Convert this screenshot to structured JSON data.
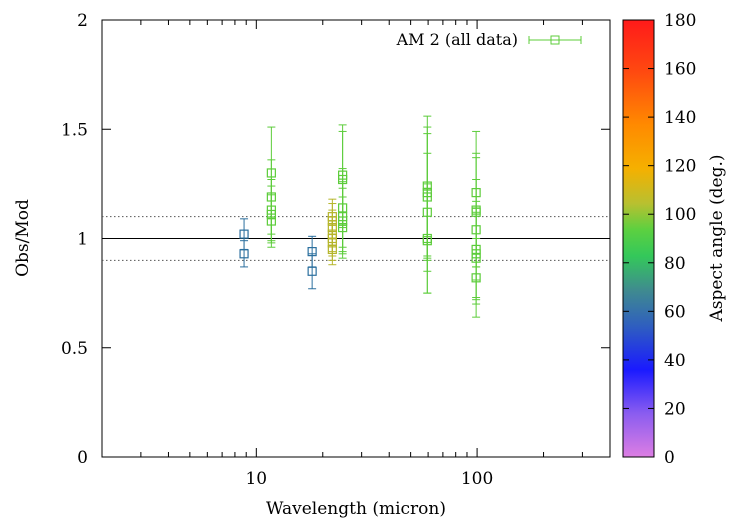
{
  "chart_data": {
    "type": "scatter",
    "xlabel": "Wavelength (micron)",
    "ylabel": "Obs/Mod",
    "xscale": "log",
    "xlim": [
      2,
      400
    ],
    "ylim": [
      0,
      2
    ],
    "x_ticks": [
      10,
      100
    ],
    "y_ticks": [
      0,
      0.5,
      1,
      1.5,
      2
    ],
    "x_tick_labels": [
      "10",
      "100"
    ],
    "y_tick_labels": [
      "0",
      "0.5",
      "1",
      "1.5",
      "2"
    ],
    "legend": {
      "label": "AM 2 (all data)",
      "position": "top-right",
      "marker": "open-square-with-errorbars"
    },
    "reference_lines": [
      {
        "y": 1.0,
        "style": "solid"
      },
      {
        "y": 1.1,
        "style": "dotted"
      },
      {
        "y": 0.9,
        "style": "dotted"
      }
    ],
    "colorbar": {
      "label": "Aspect angle (deg.)",
      "min": 0,
      "max": 180,
      "ticks": [
        0,
        20,
        40,
        60,
        80,
        100,
        120,
        140,
        160,
        180
      ],
      "tick_labels": [
        "0",
        "20",
        "40",
        "60",
        "80",
        "100",
        "120",
        "140",
        "160",
        "180"
      ]
    },
    "points": [
      {
        "x": 8.8,
        "y": 1.02,
        "err": 0.07,
        "c": 55
      },
      {
        "x": 8.8,
        "y": 0.93,
        "err": 0.06,
        "c": 55
      },
      {
        "x": 11.7,
        "y": 1.3,
        "err": 0.21,
        "c": 82
      },
      {
        "x": 11.7,
        "y": 1.19,
        "err": 0.17,
        "c": 82
      },
      {
        "x": 11.7,
        "y": 1.13,
        "err": 0.14,
        "c": 82
      },
      {
        "x": 11.7,
        "y": 1.11,
        "err": 0.13,
        "c": 82
      },
      {
        "x": 11.7,
        "y": 1.08,
        "err": 0.12,
        "c": 82
      },
      {
        "x": 17.9,
        "y": 0.94,
        "err": 0.07,
        "c": 55
      },
      {
        "x": 17.9,
        "y": 0.85,
        "err": 0.08,
        "c": 55
      },
      {
        "x": 22.1,
        "y": 1.1,
        "err": 0.08,
        "c": 100
      },
      {
        "x": 22.1,
        "y": 1.08,
        "err": 0.08,
        "c": 100
      },
      {
        "x": 22.1,
        "y": 1.05,
        "err": 0.08,
        "c": 100
      },
      {
        "x": 22.1,
        "y": 1.02,
        "err": 0.08,
        "c": 100
      },
      {
        "x": 22.1,
        "y": 1.0,
        "err": 0.08,
        "c": 100
      },
      {
        "x": 22.1,
        "y": 0.98,
        "err": 0.08,
        "c": 100
      },
      {
        "x": 22.1,
        "y": 0.95,
        "err": 0.07,
        "c": 100
      },
      {
        "x": 24.6,
        "y": 1.29,
        "err": 0.23,
        "c": 82
      },
      {
        "x": 24.6,
        "y": 1.27,
        "err": 0.22,
        "c": 82
      },
      {
        "x": 24.6,
        "y": 1.14,
        "err": 0.18,
        "c": 82
      },
      {
        "x": 24.6,
        "y": 1.1,
        "err": 0.16,
        "c": 82
      },
      {
        "x": 24.6,
        "y": 1.08,
        "err": 0.15,
        "c": 82
      },
      {
        "x": 24.6,
        "y": 1.05,
        "err": 0.14,
        "c": 82
      },
      {
        "x": 59.5,
        "y": 1.24,
        "err": 0.32,
        "c": 82
      },
      {
        "x": 59.5,
        "y": 1.21,
        "err": 0.3,
        "c": 82
      },
      {
        "x": 59.5,
        "y": 1.19,
        "err": 0.29,
        "c": 82
      },
      {
        "x": 59.5,
        "y": 1.12,
        "err": 0.27,
        "c": 82
      },
      {
        "x": 59.5,
        "y": 1.0,
        "err": 0.25,
        "c": 82
      },
      {
        "x": 59.5,
        "y": 0.99,
        "err": 0.24,
        "c": 82
      },
      {
        "x": 99,
        "y": 1.21,
        "err": 0.28,
        "c": 82
      },
      {
        "x": 99,
        "y": 1.13,
        "err": 0.26,
        "c": 82
      },
      {
        "x": 99,
        "y": 1.12,
        "err": 0.25,
        "c": 82
      },
      {
        "x": 99,
        "y": 1.04,
        "err": 0.23,
        "c": 82
      },
      {
        "x": 99,
        "y": 0.95,
        "err": 0.22,
        "c": 82
      },
      {
        "x": 99,
        "y": 0.93,
        "err": 0.21,
        "c": 82
      },
      {
        "x": 99,
        "y": 0.91,
        "err": 0.21,
        "c": 82
      },
      {
        "x": 99,
        "y": 0.82,
        "err": 0.18,
        "c": 82
      }
    ]
  }
}
